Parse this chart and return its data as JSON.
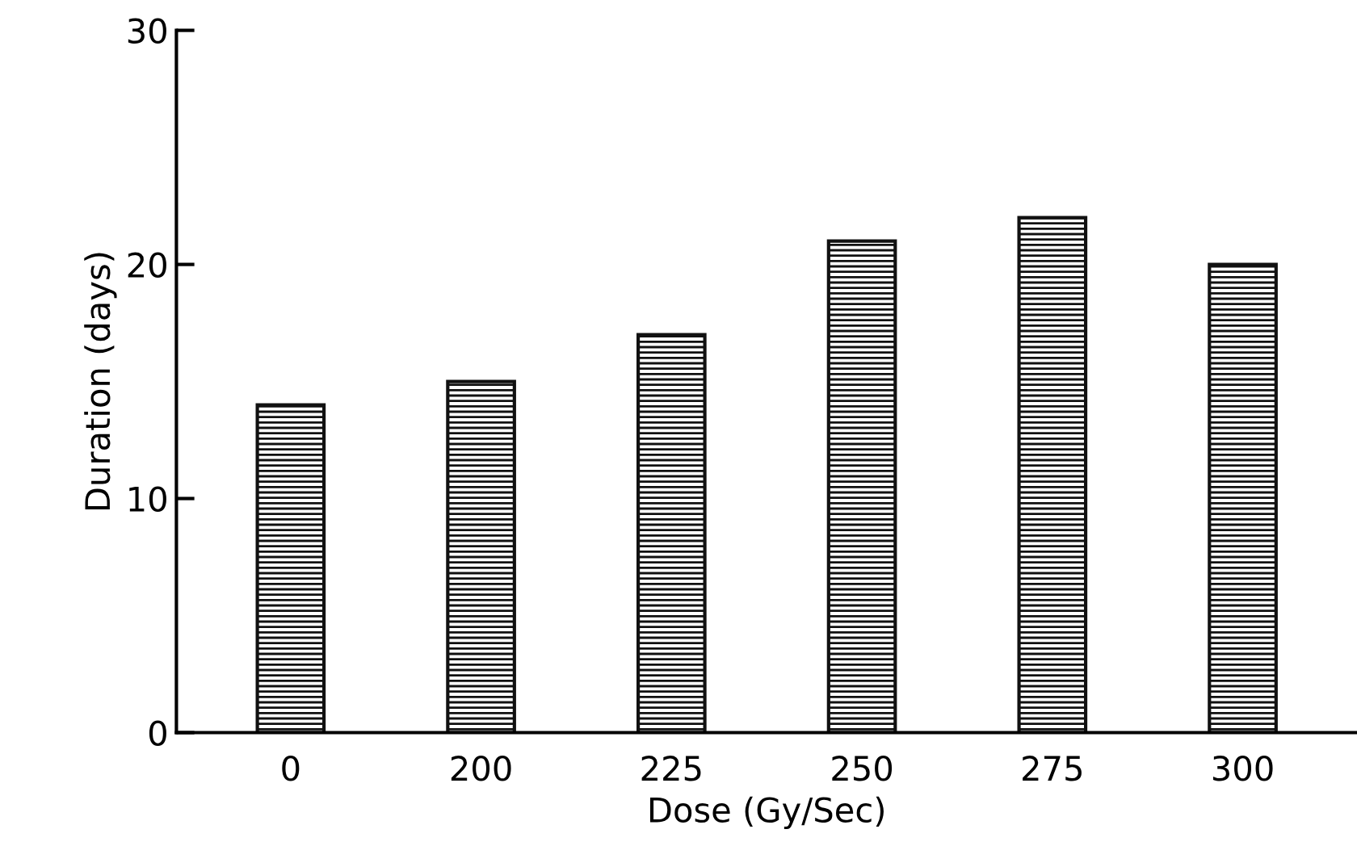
{
  "chart_data": {
    "type": "bar",
    "xlabel": "Dose (Gy/Sec)",
    "ylabel": "Duration (days)",
    "categories": [
      "0",
      "200",
      "225",
      "250",
      "275",
      "300"
    ],
    "values": [
      14,
      15,
      17,
      21,
      22,
      20
    ],
    "color": "#111111",
    "ylim": [
      0,
      30
    ],
    "yticks": [
      0,
      10,
      20,
      30
    ],
    "grid": false
  }
}
